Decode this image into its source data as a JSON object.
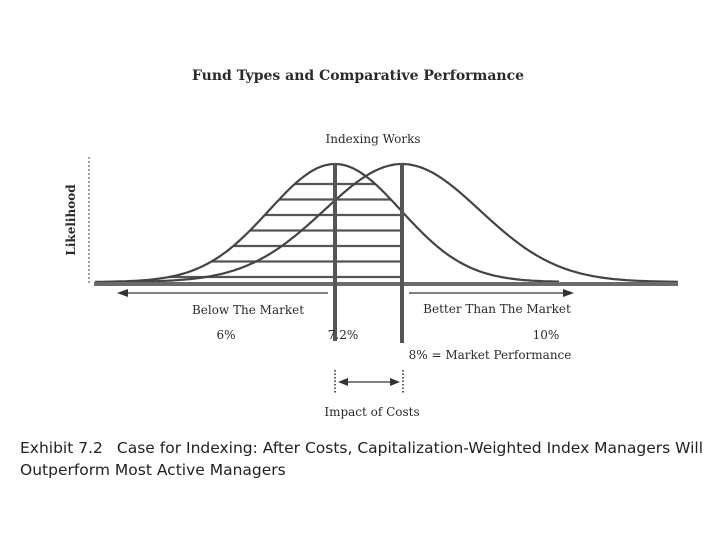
{
  "figure": {
    "title": "Fund Types and Comparative Performance",
    "top_label": "Indexing Works",
    "y_axis_label": "Likelihood",
    "below_label": "Below The Market",
    "better_label": "Better Than The Market",
    "value_6": "6%",
    "value_72": "7.2%",
    "value_10": "10%",
    "market_label": "8% = Market Performance",
    "costs_label": "Impact of Costs"
  },
  "caption": {
    "number": "Exhibit 7.2",
    "text": "Case for Indexing: After Costs, Capitalization-Weighted Index Managers Will Outperform Most Active Managers"
  },
  "style": {
    "ink": "#333333"
  }
}
